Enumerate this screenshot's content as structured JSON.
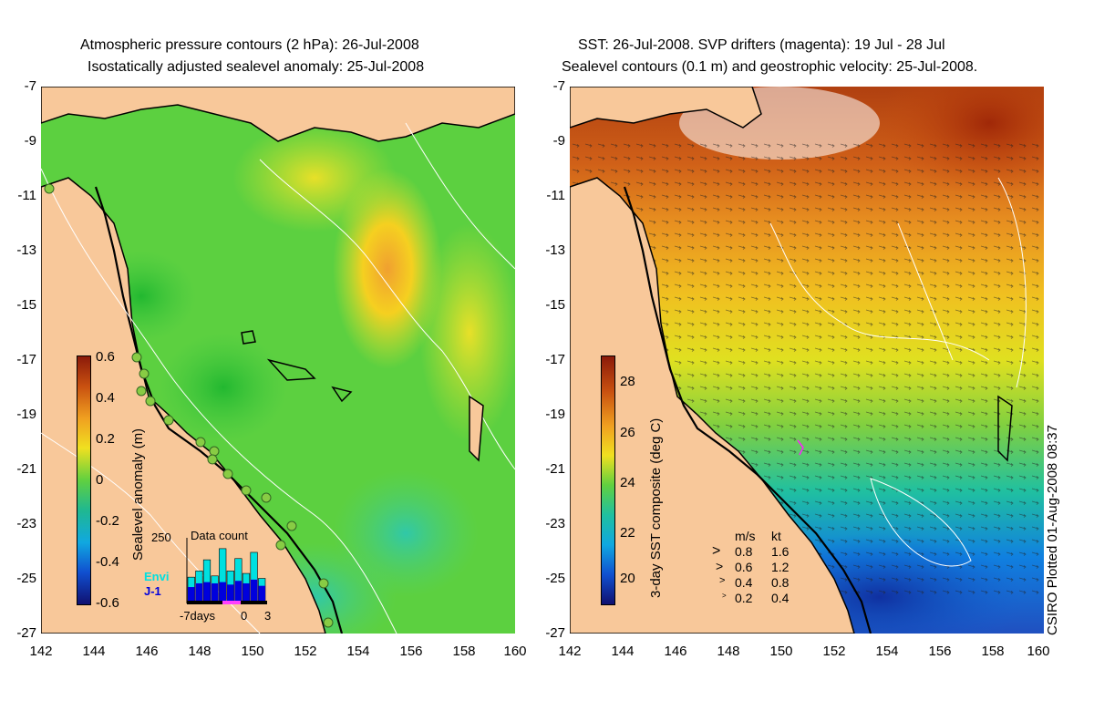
{
  "left": {
    "title_line1": "Atmospheric pressure contours (2 hPa): 26-Jul-2008",
    "title_line2": "Isostatically adjusted sealevel anomaly: 25-Jul-2008",
    "colorbar_label": "Sealevel anomaly (m)",
    "colorbar_ticks": [
      "0.6",
      "0.4",
      "0.2",
      "0",
      "-0.2",
      "-0.4",
      "-0.6"
    ],
    "colorbar_range": [
      -0.6,
      0.6
    ],
    "histogram": {
      "title": "Data count",
      "ymax_label": "250",
      "legend_envi": "Envi",
      "legend_j1": "J-1",
      "x_label_left": "-7days",
      "x_label_zero": "0",
      "x_label_right": "3",
      "envi_counts": [
        95,
        120,
        165,
        100,
        210,
        120,
        170,
        110,
        195,
        90
      ],
      "j1_counts": [
        55,
        70,
        75,
        70,
        75,
        65,
        80,
        70,
        85,
        60
      ]
    }
  },
  "right": {
    "title_line1": "SST: 26-Jul-2008. SVP drifters (magenta): 19 Jul - 28 Jul",
    "title_line2": "Sealevel contours (0.1 m) and geostrophic velocity: 25-Jul-2008.",
    "colorbar_label": "3-day SST composite (deg C)",
    "colorbar_ticks": [
      "28",
      "26",
      "24",
      "22",
      "20"
    ],
    "colorbar_range": [
      19,
      29
    ],
    "velocity_legend": {
      "header_ms": "m/s",
      "header_kt": "kt",
      "rows": [
        {
          "ms": "0.8",
          "kt": "1.6"
        },
        {
          "ms": "0.6",
          "kt": "1.2"
        },
        {
          "ms": "0.4",
          "kt": "0.8"
        },
        {
          "ms": "0.2",
          "kt": "0.4"
        }
      ]
    },
    "credit": "CSIRO Plotted 01-Aug-2008 08:37"
  },
  "axes": {
    "y_ticks": [
      "-7",
      "-9",
      "-11",
      "-13",
      "-15",
      "-17",
      "-19",
      "-21",
      "-23",
      "-25",
      "-27"
    ],
    "x_ticks": [
      "142",
      "144",
      "146",
      "148",
      "150",
      "152",
      "154",
      "156",
      "158",
      "160"
    ],
    "lon_range": [
      142,
      160
    ],
    "lat_range": [
      -27,
      -7
    ]
  },
  "colors": {
    "land": "#f8c89a",
    "coast_line": "#000000",
    "contour_white": "#ffffff",
    "tide_gauge": "#88cc44",
    "legend_envi": "#00e0e0",
    "legend_j1": "#0000dd"
  }
}
